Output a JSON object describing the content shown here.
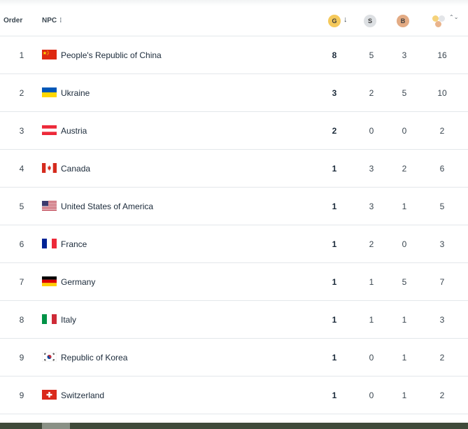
{
  "header": {
    "order_label": "Order",
    "npc_label": "NPC",
    "npc_menu": "⁝",
    "gold_label": "G",
    "silver_label": "S",
    "bronze_label": "B",
    "sort_arrow": "↓",
    "total_sort": "⌃⌄"
  },
  "colors": {
    "gold": "#f5c95b",
    "silver": "#dde0e3",
    "bronze": "#e3ab84"
  },
  "rows": [
    {
      "order": "1",
      "flag": "china-flag-icon",
      "name": "People's Republic of China",
      "gold": "8",
      "silver": "5",
      "bronze": "3",
      "total": "16"
    },
    {
      "order": "2",
      "flag": "ukraine-flag-icon",
      "name": "Ukraine",
      "gold": "3",
      "silver": "2",
      "bronze": "5",
      "total": "10"
    },
    {
      "order": "3",
      "flag": "austria-flag-icon",
      "name": "Austria",
      "gold": "2",
      "silver": "0",
      "bronze": "0",
      "total": "2"
    },
    {
      "order": "4",
      "flag": "canada-flag-icon",
      "name": "Canada",
      "gold": "1",
      "silver": "3",
      "bronze": "2",
      "total": "6"
    },
    {
      "order": "5",
      "flag": "usa-flag-icon",
      "name": "United States of America",
      "gold": "1",
      "silver": "3",
      "bronze": "1",
      "total": "5"
    },
    {
      "order": "6",
      "flag": "france-flag-icon",
      "name": "France",
      "gold": "1",
      "silver": "2",
      "bronze": "0",
      "total": "3"
    },
    {
      "order": "7",
      "flag": "germany-flag-icon",
      "name": "Germany",
      "gold": "1",
      "silver": "1",
      "bronze": "5",
      "total": "7"
    },
    {
      "order": "8",
      "flag": "italy-flag-icon",
      "name": "Italy",
      "gold": "1",
      "silver": "1",
      "bronze": "1",
      "total": "3"
    },
    {
      "order": "9",
      "flag": "korea-flag-icon",
      "name": "Republic of Korea",
      "gold": "1",
      "silver": "0",
      "bronze": "1",
      "total": "2"
    },
    {
      "order": "9",
      "flag": "switzerland-flag-icon",
      "name": "Switzerland",
      "gold": "1",
      "silver": "0",
      "bronze": "1",
      "total": "2"
    }
  ]
}
